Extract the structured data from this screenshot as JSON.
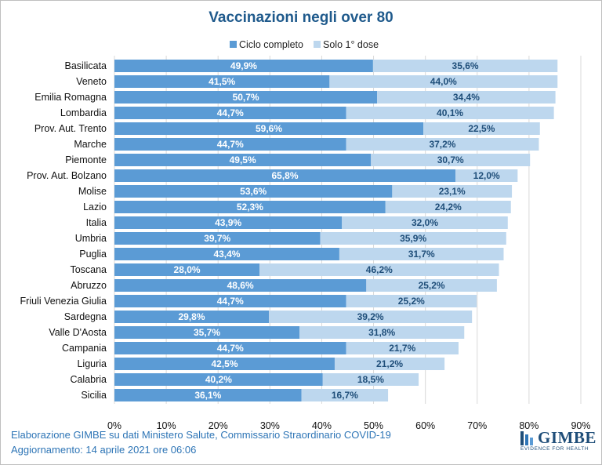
{
  "chart_data": {
    "type": "bar",
    "orientation": "horizontal",
    "stacked": true,
    "title": "Vaccinazioni negli over 80",
    "xlim": [
      0,
      90
    ],
    "xticks": [
      0,
      10,
      20,
      30,
      40,
      50,
      60,
      70,
      80,
      90
    ],
    "tick_suffix": "%",
    "grid": true,
    "legend_position": "top",
    "categories": [
      "Basilicata",
      "Veneto",
      "Emilia Romagna",
      "Lombardia",
      "Prov. Aut. Trento",
      "Marche",
      "Piemonte",
      "Prov. Aut. Bolzano",
      "Molise",
      "Lazio",
      "Italia",
      "Umbria",
      "Puglia",
      "Toscana",
      "Abruzzo",
      "Friuli Venezia Giulia",
      "Sardegna",
      "Valle D'Aosta",
      "Campania",
      "Liguria",
      "Calabria",
      "Sicilia"
    ],
    "series": [
      {
        "name": "Ciclo completo",
        "color": "#5b9bd5",
        "values": [
          49.9,
          41.5,
          50.7,
          44.7,
          59.6,
          44.7,
          49.5,
          65.8,
          53.6,
          52.3,
          43.9,
          39.7,
          43.4,
          28.0,
          48.6,
          44.7,
          29.8,
          35.7,
          44.7,
          42.5,
          40.2,
          36.1
        ],
        "labels": [
          "49,9%",
          "41,5%",
          "50,7%",
          "44,7%",
          "59,6%",
          "44,7%",
          "49,5%",
          "65,8%",
          "53,6%",
          "52,3%",
          "43,9%",
          "39,7%",
          "43,4%",
          "28,0%",
          "48,6%",
          "44,7%",
          "29,8%",
          "35,7%",
          "44,7%",
          "42,5%",
          "40,2%",
          "36,1%"
        ]
      },
      {
        "name": "Solo 1° dose",
        "color": "#bdd7ee",
        "values": [
          35.6,
          44.0,
          34.4,
          40.1,
          22.5,
          37.2,
          30.7,
          12.0,
          23.1,
          24.2,
          32.0,
          35.9,
          31.7,
          46.2,
          25.2,
          25.2,
          39.2,
          31.8,
          21.7,
          21.2,
          18.5,
          16.7
        ],
        "labels": [
          "35,6%",
          "44,0%",
          "34,4%",
          "40,1%",
          "22,5%",
          "37,2%",
          "30,7%",
          "12,0%",
          "23,1%",
          "24,2%",
          "32,0%",
          "35,9%",
          "31,7%",
          "46,2%",
          "25,2%",
          "25,2%",
          "39,2%",
          "31,8%",
          "21,7%",
          "21,2%",
          "18,5%",
          "16,7%"
        ]
      }
    ]
  },
  "footer": {
    "source": "Elaborazione GIMBE su dati Ministero Salute, Commissario Straordinario COVID-19",
    "update": "Aggiornamento: 14 aprile 2021 ore 06:06"
  },
  "logo": {
    "name": "GIMBE",
    "tagline": "EVIDENCE FOR HEALTH"
  }
}
